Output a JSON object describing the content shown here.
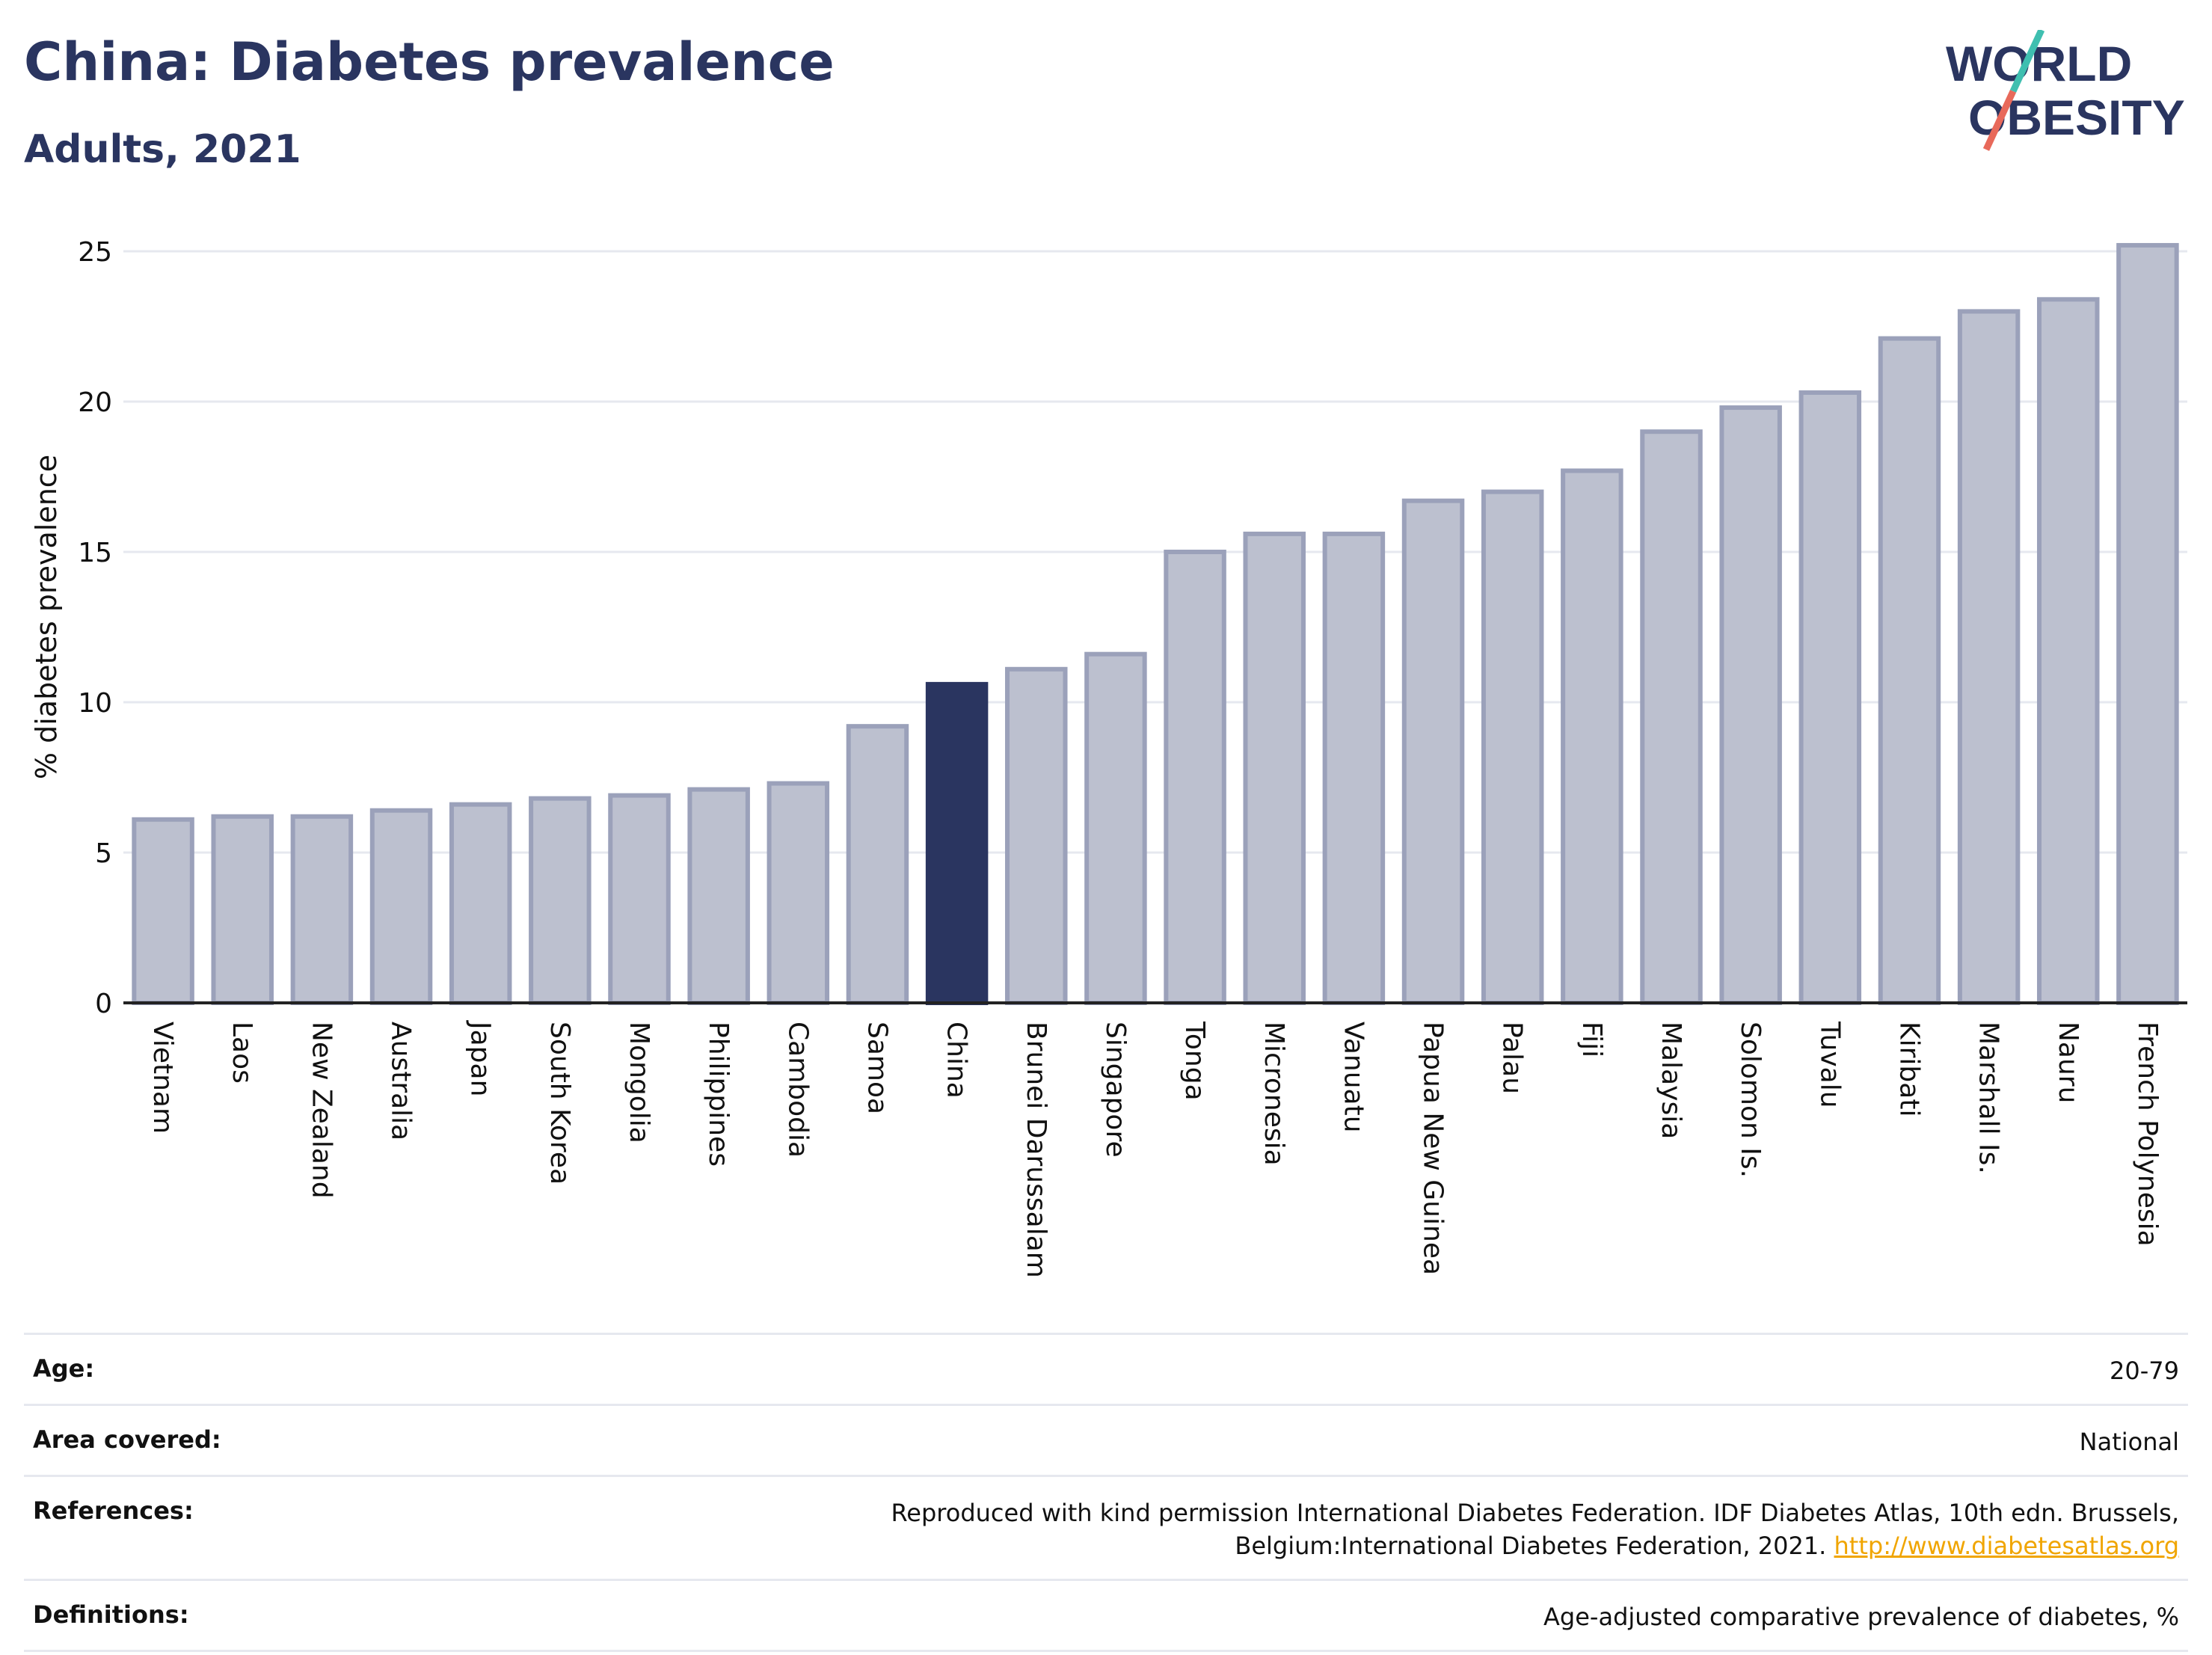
{
  "header": {
    "title": "China: Diabetes prevalence",
    "subtitle": "Adults, 2021"
  },
  "logo": {
    "line1": "WORLD",
    "line2": "OBESITY",
    "colors": {
      "text": "#2a3560",
      "slash_top": "#3fbfb0",
      "slash_bottom": "#e8695a"
    }
  },
  "chart_data": {
    "type": "bar",
    "title": "China: Diabetes prevalence",
    "subtitle": "Adults, 2021",
    "xlabel": "",
    "ylabel": "% diabetes prevalence",
    "ylim": [
      0,
      25.5
    ],
    "yticks": [
      0,
      5,
      10,
      15,
      20,
      25
    ],
    "grid": true,
    "categories": [
      "Vietnam",
      "Laos",
      "New Zealand",
      "Australia",
      "Japan",
      "South Korea",
      "Mongolia",
      "Philippines",
      "Cambodia",
      "Samoa",
      "China",
      "Brunei Darussalam",
      "Singapore",
      "Tonga",
      "Micronesia",
      "Vanuatu",
      "Papua New Guinea",
      "Palau",
      "Fiji",
      "Malaysia",
      "Solomon Is.",
      "Tuvalu",
      "Kiribati",
      "Marshall Is.",
      "Nauru",
      "French Polynesia"
    ],
    "values": [
      6.1,
      6.2,
      6.2,
      6.4,
      6.6,
      6.8,
      6.9,
      7.1,
      7.3,
      9.2,
      10.6,
      11.1,
      11.6,
      15.0,
      15.6,
      15.6,
      16.7,
      17.0,
      17.7,
      19.0,
      19.8,
      20.3,
      22.1,
      23.0,
      23.4,
      25.2
    ],
    "highlight": "China",
    "colors": {
      "bar": "#bcc0cf",
      "bar_edge": "#9ba1ba",
      "highlight": "#2a3560",
      "grid": "#e6e8ef",
      "axis": "#222222"
    }
  },
  "info_table": [
    {
      "label": "Age:",
      "value": "20-79"
    },
    {
      "label": "Area covered:",
      "value": "National"
    },
    {
      "label": "References:",
      "value": "Reproduced with kind permission International Diabetes Federation.  IDF Diabetes Atlas, 10th edn. Brussels, Belgium:International Diabetes Federation, 2021. ",
      "link": "http://www.diabetesatlas.org"
    },
    {
      "label": "Definitions:",
      "value": "Age-adjusted comparative prevalence of diabetes, %"
    }
  ]
}
